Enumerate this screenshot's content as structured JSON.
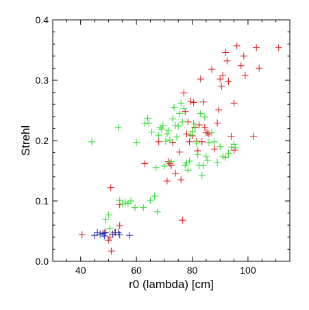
{
  "chart_data": {
    "type": "scatter",
    "xlabel": "r0 (lambda) [cm]",
    "ylabel": "Strehl",
    "xlim": [
      30,
      115
    ],
    "ylim": [
      0,
      0.4
    ],
    "xticks": [
      40,
      60,
      80,
      100
    ],
    "yticks": [
      0.0,
      0.1,
      0.2,
      0.3,
      0.4
    ],
    "x_minor_step": 5,
    "y_minor_step": 0.02,
    "grid": false,
    "marker": "plus",
    "series": [
      {
        "color": "#dd2020",
        "points": [
          [
            40.5,
            0.044
          ],
          [
            48.5,
            0.047
          ],
          [
            50.0,
            0.035
          ],
          [
            50.5,
            0.04
          ],
          [
            51.0,
            0.017
          ],
          [
            50.8,
            0.122
          ],
          [
            52.0,
            0.048
          ],
          [
            54.0,
            0.094
          ],
          [
            54.0,
            0.059
          ],
          [
            63.0,
            0.162
          ],
          [
            68.0,
            0.198
          ],
          [
            71.0,
            0.133
          ],
          [
            71.5,
            0.165
          ],
          [
            72.0,
            0.162
          ],
          [
            72.5,
            0.159
          ],
          [
            73.0,
            0.197
          ],
          [
            74.0,
            0.146
          ],
          [
            75.5,
            0.181
          ],
          [
            76.0,
            0.135
          ],
          [
            76.5,
            0.068
          ],
          [
            77.0,
            0.279
          ],
          [
            77.5,
            0.248
          ],
          [
            78.0,
            0.211
          ],
          [
            78.5,
            0.231
          ],
          [
            79.0,
            0.198
          ],
          [
            79.5,
            0.265
          ],
          [
            80.0,
            0.208
          ],
          [
            80.5,
            0.263
          ],
          [
            81.0,
            0.222
          ],
          [
            81.5,
            0.199
          ],
          [
            82.0,
            0.183
          ],
          [
            82.5,
            0.226
          ],
          [
            83.0,
            0.302
          ],
          [
            83.5,
            0.198
          ],
          [
            84.0,
            0.264
          ],
          [
            84.5,
            0.222
          ],
          [
            85.0,
            0.213
          ],
          [
            85.5,
            0.213
          ],
          [
            86.0,
            0.211
          ],
          [
            87.0,
            0.318
          ],
          [
            88.0,
            0.186
          ],
          [
            89.0,
            0.229
          ],
          [
            89.5,
            0.251
          ],
          [
            90.0,
            0.302
          ],
          [
            90.5,
            0.29
          ],
          [
            91.0,
            0.308
          ],
          [
            92.0,
            0.346
          ],
          [
            92.5,
            0.332
          ],
          [
            93.0,
            0.298
          ],
          [
            94.0,
            0.207
          ],
          [
            95.0,
            0.262
          ],
          [
            95.0,
            0.184
          ],
          [
            96.0,
            0.357
          ],
          [
            97.5,
            0.324
          ],
          [
            98.5,
            0.34
          ],
          [
            99.0,
            0.308
          ],
          [
            102.0,
            0.207
          ],
          [
            103.0,
            0.354
          ],
          [
            104.0,
            0.32
          ],
          [
            111.0,
            0.354
          ]
        ]
      },
      {
        "color": "#33dd33",
        "points": [
          [
            44.0,
            0.198
          ],
          [
            49.0,
            0.069
          ],
          [
            50.0,
            0.077
          ],
          [
            50.5,
            0.054
          ],
          [
            53.5,
            0.222
          ],
          [
            54.0,
            0.101
          ],
          [
            55.0,
            0.095
          ],
          [
            56.0,
            0.098
          ],
          [
            57.0,
            0.096
          ],
          [
            58.0,
            0.1
          ],
          [
            59.5,
            0.089
          ],
          [
            60.0,
            0.197
          ],
          [
            62.5,
            0.089
          ],
          [
            63.0,
            0.228
          ],
          [
            64.0,
            0.237
          ],
          [
            64.5,
            0.229
          ],
          [
            65.0,
            0.101
          ],
          [
            65.5,
            0.214
          ],
          [
            66.5,
            0.108
          ],
          [
            67.0,
            0.155
          ],
          [
            67.5,
            0.082
          ],
          [
            68.0,
            0.209
          ],
          [
            68.5,
            0.222
          ],
          [
            69.0,
            0.219
          ],
          [
            69.5,
            0.225
          ],
          [
            70.0,
            0.158
          ],
          [
            70.5,
            0.199
          ],
          [
            71.0,
            0.211
          ],
          [
            71.5,
            0.217
          ],
          [
            72.0,
            0.201
          ],
          [
            72.5,
            0.165
          ],
          [
            73.0,
            0.236
          ],
          [
            73.5,
            0.255
          ],
          [
            74.0,
            0.225
          ],
          [
            74.5,
            0.206
          ],
          [
            75.0,
            0.224
          ],
          [
            75.5,
            0.245
          ],
          [
            76.0,
            0.262
          ],
          [
            76.5,
            0.231
          ],
          [
            77.0,
            0.253
          ],
          [
            77.5,
            0.159
          ],
          [
            78.0,
            0.163
          ],
          [
            78.5,
            0.151
          ],
          [
            79.0,
            0.166
          ],
          [
            79.5,
            0.209
          ],
          [
            80.0,
            0.215
          ],
          [
            80.5,
            0.229
          ],
          [
            81.0,
            0.221
          ],
          [
            81.5,
            0.196
          ],
          [
            82.0,
            0.177
          ],
          [
            82.5,
            0.159
          ],
          [
            83.0,
            0.245
          ],
          [
            83.5,
            0.142
          ],
          [
            84.0,
            0.159
          ],
          [
            84.5,
            0.239
          ],
          [
            85.0,
            0.174
          ],
          [
            85.5,
            0.167
          ],
          [
            86.0,
            0.197
          ],
          [
            87.0,
            0.213
          ],
          [
            88.0,
            0.198
          ],
          [
            89.0,
            0.164
          ],
          [
            90.0,
            0.19
          ],
          [
            91.0,
            0.174
          ],
          [
            92.0,
            0.172
          ],
          [
            93.0,
            0.179
          ],
          [
            94.0,
            0.189
          ],
          [
            95.0,
            0.194
          ],
          [
            95.5,
            0.188
          ]
        ]
      },
      {
        "color": "#2233bb",
        "points": [
          [
            45.0,
            0.043
          ],
          [
            46.0,
            0.048
          ],
          [
            47.0,
            0.045
          ],
          [
            48.0,
            0.046
          ],
          [
            48.5,
            0.042
          ],
          [
            49.0,
            0.048
          ],
          [
            51.5,
            0.045
          ],
          [
            52.5,
            0.048
          ],
          [
            53.5,
            0.048
          ],
          [
            54.0,
            0.044
          ],
          [
            57.5,
            0.043
          ]
        ]
      }
    ]
  }
}
